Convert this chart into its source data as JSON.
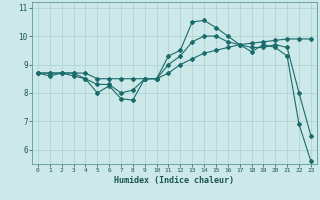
{
  "xlabel": "Humidex (Indice chaleur)",
  "ylabel": "",
  "bg_color": "#cce8e8",
  "grid_color": "#aad0d0",
  "line_color": "#1a6b6b",
  "xlim": [
    -0.5,
    23.5
  ],
  "ylim": [
    5.5,
    11.2
  ],
  "xticks": [
    0,
    1,
    2,
    3,
    4,
    5,
    6,
    7,
    8,
    9,
    10,
    11,
    12,
    13,
    14,
    15,
    16,
    17,
    18,
    19,
    20,
    21,
    22,
    23
  ],
  "yticks": [
    6,
    7,
    8,
    9,
    10,
    11
  ],
  "series": [
    [
      8.7,
      8.6,
      8.7,
      8.6,
      8.5,
      8.0,
      8.25,
      7.8,
      7.75,
      8.5,
      8.5,
      9.3,
      9.5,
      10.5,
      10.55,
      10.3,
      10.0,
      9.7,
      9.45,
      9.7,
      9.6,
      9.3,
      6.9,
      5.6
    ],
    [
      8.7,
      8.7,
      8.7,
      8.7,
      8.7,
      8.5,
      8.5,
      8.5,
      8.5,
      8.5,
      8.5,
      8.7,
      9.0,
      9.2,
      9.4,
      9.5,
      9.6,
      9.7,
      9.75,
      9.8,
      9.85,
      9.9,
      9.9,
      9.9
    ],
    [
      8.7,
      8.7,
      8.7,
      8.7,
      8.5,
      8.3,
      8.3,
      8.0,
      8.1,
      8.5,
      8.5,
      9.0,
      9.3,
      9.8,
      10.0,
      10.0,
      9.8,
      9.7,
      9.6,
      9.6,
      9.7,
      9.6,
      8.0,
      6.5
    ]
  ]
}
